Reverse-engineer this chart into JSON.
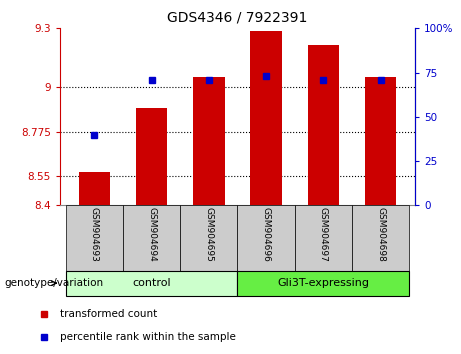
{
  "title": "GDS4346 / 7922391",
  "samples": [
    "GSM904693",
    "GSM904694",
    "GSM904695",
    "GSM904696",
    "GSM904697",
    "GSM904698"
  ],
  "bar_tops": [
    8.57,
    8.895,
    9.055,
    9.285,
    9.215,
    9.055
  ],
  "bar_bottom": 8.4,
  "blue_percentile": [
    40,
    71,
    71,
    73,
    71,
    71
  ],
  "ylim_left": [
    8.4,
    9.3
  ],
  "ylim_right": [
    0,
    100
  ],
  "yticks_left": [
    8.4,
    8.55,
    8.775,
    9.0,
    9.3
  ],
  "ytick_labels_left": [
    "8.4",
    "8.55",
    "8.775",
    "9",
    "9.3"
  ],
  "yticks_right": [
    0,
    25,
    50,
    75,
    100
  ],
  "ytick_labels_right": [
    "0",
    "25",
    "50",
    "75",
    "100%"
  ],
  "hlines": [
    8.55,
    8.775,
    9.0
  ],
  "bar_color": "#cc0000",
  "blue_color": "#0000cc",
  "control_indices": [
    0,
    1,
    2
  ],
  "gli3t_indices": [
    3,
    4,
    5
  ],
  "bar_width": 0.55,
  "legend_red_label": "transformed count",
  "legend_blue_label": "percentile rank within the sample",
  "genotype_label": "genotype/variation",
  "tick_color_left": "#cc0000",
  "tick_color_right": "#0000cc",
  "control_color": "#ccffcc",
  "gli3t_color": "#66ee44",
  "gray_box_color": "#cccccc"
}
